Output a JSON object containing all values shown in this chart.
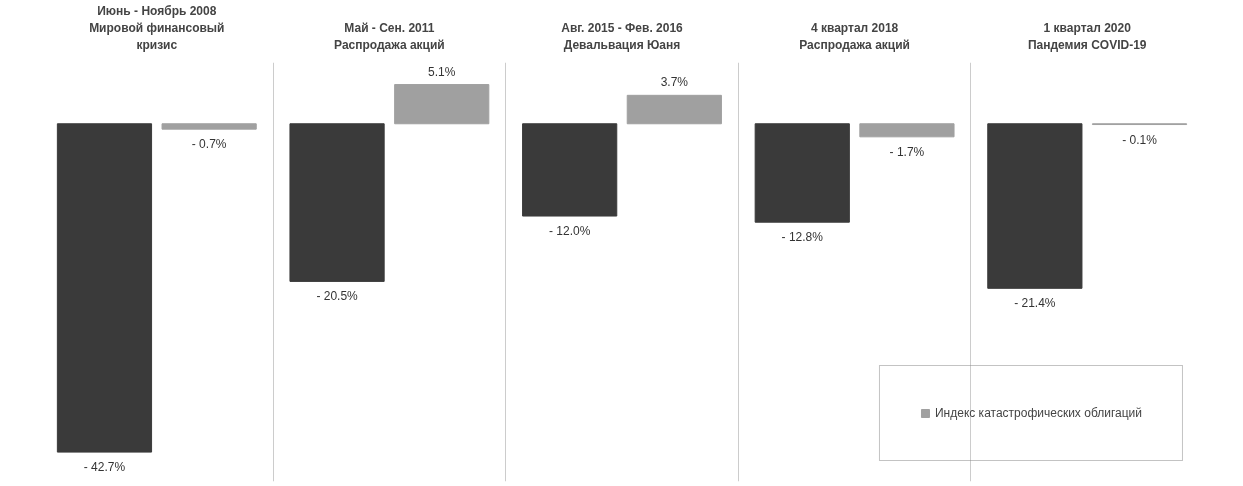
{
  "chart_data": {
    "type": "bar",
    "categories": [
      "Июнь - Ноябрь 2008\nМировой финансовый\nкризис",
      "Май - Сен. 2011\nРаспродажа акций",
      "Авг. 2015 - Фев. 2016\nДевальвация Юаня",
      "4 квартал 2018\nРаспродажа акций",
      "1 квартал 2020\nПандемия COVID-19"
    ],
    "series": [
      {
        "color": "#3a3a3a",
        "values": [
          -42.7,
          -20.5,
          -12.0,
          -12.8,
          -21.4
        ],
        "value_labels": [
          "- 42.7%",
          "- 20.5%",
          "- 12.0%",
          "- 12.8%",
          "- 21.4%"
        ]
      },
      {
        "name": "Индекс катастрофических облигаций",
        "color": "#a0a0a0",
        "values": [
          -0.7,
          5.1,
          3.7,
          -1.7,
          -0.1
        ],
        "value_labels": [
          "- 0.7%",
          "5.1%",
          "3.7%",
          "- 1.7%",
          "- 0.1%"
        ]
      }
    ],
    "grid": "x",
    "legend": "bottom right"
  }
}
